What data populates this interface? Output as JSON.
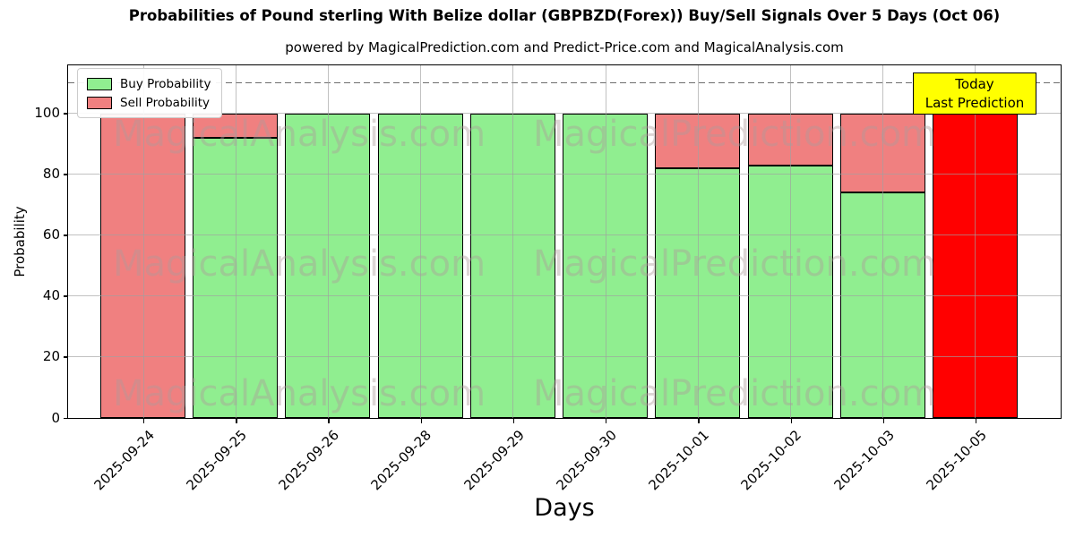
{
  "chart_data": {
    "type": "bar",
    "stacked": true,
    "title": "Probabilities of Pound sterling With Belize dollar (GBPBZD(Forex)) Buy/Sell Signals Over 5 Days (Oct 06)",
    "subtitle": "powered by MagicalPrediction.com and Predict-Price.com and MagicalAnalysis.com",
    "xlabel": "Days",
    "ylabel": "Probability",
    "categories": [
      "2025-09-24",
      "2025-09-25",
      "2025-09-26",
      "2025-09-28",
      "2025-09-29",
      "2025-09-30",
      "2025-10-01",
      "2025-10-02",
      "2025-10-03",
      "2025-10-05"
    ],
    "series": [
      {
        "name": "Buy Probability",
        "color": "#90ee90",
        "values": [
          0,
          92,
          100,
          100,
          100,
          100,
          82,
          83,
          74,
          0
        ]
      },
      {
        "name": "Sell Probability",
        "color": "#f08080",
        "values": [
          100,
          8,
          0,
          0,
          0,
          0,
          18,
          17,
          26,
          100
        ]
      }
    ],
    "last_bar_highlight": {
      "index": 9,
      "color": "#ff0000"
    },
    "ylim": [
      0,
      115.5
    ],
    "yticks": [
      0,
      20,
      40,
      60,
      80,
      100
    ],
    "dashed_line_y": 110,
    "grid": true,
    "legend_position": "upper-left",
    "bar_edge_color": "#000000"
  },
  "annotation": {
    "line1": "Today",
    "line2": "Last Prediction",
    "bg_color": "#ffff00"
  },
  "watermarks": {
    "left_text": "MagicalAnalysis.com",
    "right_text": "MagicalPrediction.com"
  }
}
